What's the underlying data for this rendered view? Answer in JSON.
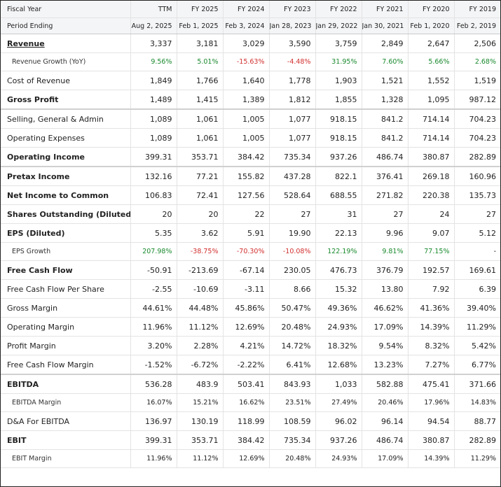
{
  "header": {
    "fiscal_label": "Fiscal Year",
    "period_label": "Period Ending",
    "columns": [
      {
        "year": "TTM",
        "period": "Aug 2, 2025"
      },
      {
        "year": "FY 2025",
        "period": "Feb 1, 2025"
      },
      {
        "year": "FY 2024",
        "period": "Feb 3, 2024"
      },
      {
        "year": "FY 2023",
        "period": "Jan 28, 2023"
      },
      {
        "year": "FY 2022",
        "period": "Jan 29, 2022"
      },
      {
        "year": "FY 2021",
        "period": "Jan 30, 2021"
      },
      {
        "year": "FY 2020",
        "period": "Feb 1, 2020"
      },
      {
        "year": "FY 2019",
        "period": "Feb 2, 2019"
      }
    ]
  },
  "rows": [
    {
      "label": "Revenue",
      "values": [
        "3,337",
        "3,181",
        "3,029",
        "3,590",
        "3,759",
        "2,849",
        "2,647",
        "2,506"
      ]
    },
    {
      "label": "Revenue Growth (YoY)",
      "values": [
        "9.56%",
        "5.01%",
        "-15.63%",
        "-4.48%",
        "31.95%",
        "7.60%",
        "5.66%",
        "2.68%"
      ]
    },
    {
      "label": "Cost of Revenue",
      "values": [
        "1,849",
        "1,766",
        "1,640",
        "1,778",
        "1,903",
        "1,521",
        "1,552",
        "1,519"
      ]
    },
    {
      "label": "Gross Profit",
      "values": [
        "1,489",
        "1,415",
        "1,389",
        "1,812",
        "1,855",
        "1,328",
        "1,095",
        "987.12"
      ]
    },
    {
      "label": "Selling, General & Admin",
      "values": [
        "1,089",
        "1,061",
        "1,005",
        "1,077",
        "918.15",
        "841.2",
        "714.14",
        "704.23"
      ]
    },
    {
      "label": "Operating Expenses",
      "values": [
        "1,089",
        "1,061",
        "1,005",
        "1,077",
        "918.15",
        "841.2",
        "714.14",
        "704.23"
      ]
    },
    {
      "label": "Operating Income",
      "values": [
        "399.31",
        "353.71",
        "384.42",
        "735.34",
        "937.26",
        "486.74",
        "380.87",
        "282.89"
      ]
    },
    {
      "label": "Pretax Income",
      "values": [
        "132.16",
        "77.21",
        "155.82",
        "437.28",
        "822.1",
        "376.41",
        "269.18",
        "160.96"
      ]
    },
    {
      "label": "Net Income to Common",
      "values": [
        "106.83",
        "72.41",
        "127.56",
        "528.64",
        "688.55",
        "271.82",
        "220.38",
        "135.73"
      ]
    },
    {
      "label": "Shares Outstanding (Diluted)",
      "values": [
        "20",
        "20",
        "22",
        "27",
        "31",
        "27",
        "24",
        "27"
      ]
    },
    {
      "label": "EPS (Diluted)",
      "values": [
        "5.35",
        "3.62",
        "5.91",
        "19.90",
        "22.13",
        "9.96",
        "9.07",
        "5.12"
      ]
    },
    {
      "label": "EPS Growth",
      "values": [
        "207.98%",
        "-38.75%",
        "-70.30%",
        "-10.08%",
        "122.19%",
        "9.81%",
        "77.15%",
        "-"
      ]
    },
    {
      "label": "Free Cash Flow",
      "values": [
        "-50.91",
        "-213.69",
        "-67.14",
        "230.05",
        "476.73",
        "376.79",
        "192.57",
        "169.61"
      ]
    },
    {
      "label": "Free Cash Flow Per Share",
      "values": [
        "-2.55",
        "-10.69",
        "-3.11",
        "8.66",
        "15.32",
        "13.80",
        "7.92",
        "6.39"
      ]
    },
    {
      "label": "Gross Margin",
      "values": [
        "44.61%",
        "44.48%",
        "45.86%",
        "50.47%",
        "49.36%",
        "46.62%",
        "41.36%",
        "39.40%"
      ]
    },
    {
      "label": "Operating Margin",
      "values": [
        "11.96%",
        "11.12%",
        "12.69%",
        "20.48%",
        "24.93%",
        "17.09%",
        "14.39%",
        "11.29%"
      ]
    },
    {
      "label": "Profit Margin",
      "values": [
        "3.20%",
        "2.28%",
        "4.21%",
        "14.72%",
        "18.32%",
        "9.54%",
        "8.32%",
        "5.42%"
      ]
    },
    {
      "label": "Free Cash Flow Margin",
      "values": [
        "-1.52%",
        "-6.72%",
        "-2.22%",
        "6.41%",
        "12.68%",
        "13.23%",
        "7.27%",
        "6.77%"
      ]
    },
    {
      "label": "EBITDA",
      "values": [
        "536.28",
        "483.9",
        "503.41",
        "843.93",
        "1,033",
        "582.88",
        "475.41",
        "371.66"
      ]
    },
    {
      "label": "EBITDA Margin",
      "values": [
        "16.07%",
        "15.21%",
        "16.62%",
        "23.51%",
        "27.49%",
        "20.46%",
        "17.96%",
        "14.83%"
      ]
    },
    {
      "label": "D&A For EBITDA",
      "values": [
        "136.97",
        "130.19",
        "118.99",
        "108.59",
        "96.02",
        "96.14",
        "94.54",
        "88.77"
      ]
    },
    {
      "label": "EBIT",
      "values": [
        "399.31",
        "353.71",
        "384.42",
        "735.34",
        "937.26",
        "486.74",
        "380.87",
        "282.89"
      ]
    },
    {
      "label": "EBIT Margin",
      "values": [
        "11.96%",
        "11.12%",
        "12.69%",
        "20.48%",
        "24.93%",
        "17.09%",
        "14.39%",
        "11.29%"
      ]
    }
  ],
  "colors": {
    "positive": "#1a8a2e",
    "negative": "#d3302f",
    "header_bg": "#f4f5f7"
  }
}
